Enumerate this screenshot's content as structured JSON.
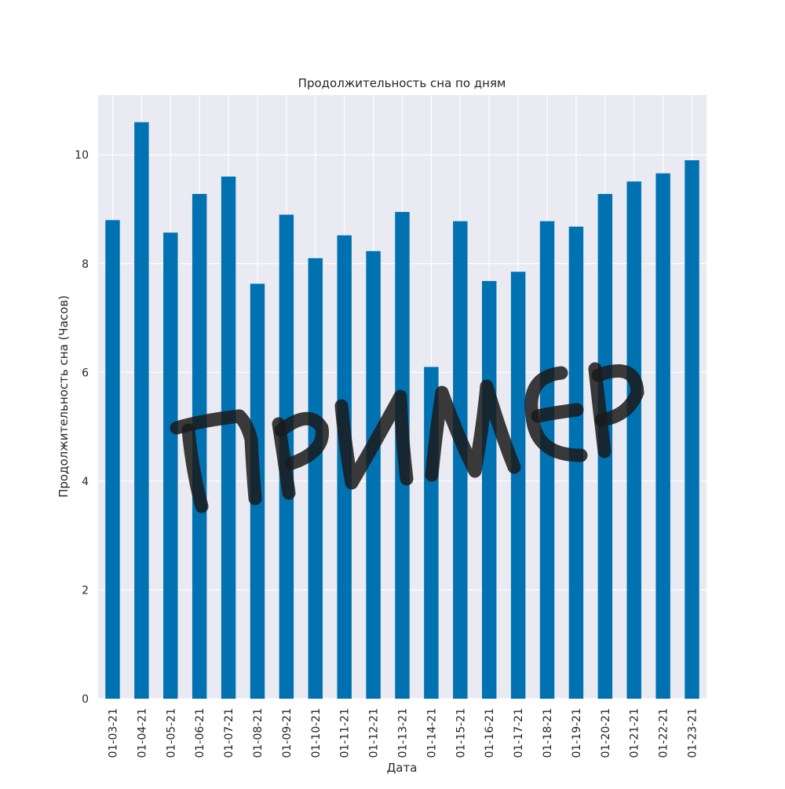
{
  "chart_data": {
    "type": "bar",
    "title": "Продолжительность сна по дням",
    "xlabel": "Дата",
    "ylabel": "Продолжительность сна (Часов)",
    "categories": [
      "01-03-21",
      "01-04-21",
      "01-05-21",
      "01-06-21",
      "01-07-21",
      "01-08-21",
      "01-09-21",
      "01-10-21",
      "01-11-21",
      "01-12-21",
      "01-13-21",
      "01-14-21",
      "01-15-21",
      "01-16-21",
      "01-17-21",
      "01-18-21",
      "01-19-21",
      "01-20-21",
      "01-21-21",
      "01-22-21",
      "01-23-21"
    ],
    "values": [
      8.8,
      10.6,
      8.57,
      9.28,
      9.6,
      7.63,
      8.9,
      8.1,
      8.52,
      8.23,
      8.95,
      6.1,
      8.78,
      7.68,
      7.85,
      8.78,
      8.68,
      9.28,
      9.51,
      9.66,
      9.9
    ],
    "ylim": [
      0,
      11.1
    ],
    "yticks": [
      0,
      2,
      4,
      6,
      8,
      10
    ],
    "grid": true,
    "bar_color": "#0072b2",
    "plot_background": "#eaeaf2",
    "grid_color": "#ffffff",
    "watermark": {
      "text": "ПРИМЕР",
      "color": "#1a1a1a"
    }
  }
}
